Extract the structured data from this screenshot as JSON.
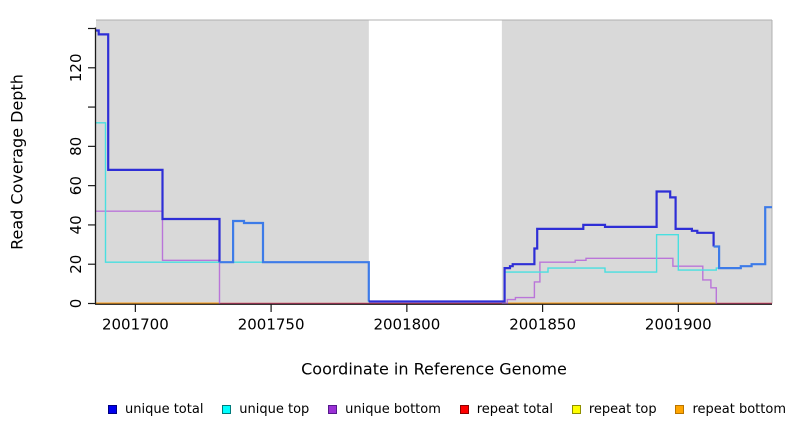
{
  "chart_data": {
    "type": "line",
    "title": "",
    "xlabel": "Coordinate in Reference Genome",
    "ylabel": "Read Coverage Depth",
    "x_range": [
      2001685.5,
      2001934.5
    ],
    "y_range": [
      0,
      144
    ],
    "grid": false,
    "legend_position": "bottom",
    "shaded_region_color": "#D9D9D9",
    "shaded_regions": [
      [
        2001685.5,
        2001786
      ],
      [
        2001835,
        2001934.5
      ]
    ],
    "x_ticks": [
      {
        "v": 2001700,
        "label": "2001700"
      },
      {
        "v": 2001750,
        "label": "2001750"
      },
      {
        "v": 2001800,
        "label": "2001800"
      },
      {
        "v": 2001850,
        "label": "2001850"
      },
      {
        "v": 2001900,
        "label": "2001900"
      }
    ],
    "y_ticks": [
      {
        "v": 0,
        "label": "0"
      },
      {
        "v": 20,
        "label": "20"
      },
      {
        "v": 40,
        "label": "40"
      },
      {
        "v": 60,
        "label": "60"
      },
      {
        "v": 80,
        "label": "80"
      },
      {
        "v": 100,
        "label": ""
      },
      {
        "v": 120,
        "label": "120"
      },
      {
        "v": 140,
        "label": ""
      }
    ],
    "legend": [
      {
        "label": "unique total",
        "fill": "#0000EE",
        "border": "#000080"
      },
      {
        "label": "unique top",
        "fill": "#00FFFF",
        "border": "#007B7B"
      },
      {
        "label": "unique bottom",
        "fill": "#9B30D6",
        "border": "#551A8B"
      },
      {
        "label": "repeat total",
        "fill": "#FF0000",
        "border": "#8B0000"
      },
      {
        "label": "repeat top",
        "fill": "#FFFF00",
        "border": "#8F8F00"
      },
      {
        "label": "repeat bottom",
        "fill": "#FFA500",
        "border": "#B87400"
      }
    ],
    "series": [
      {
        "name": "repeat top",
        "color": "#F2E53C",
        "width": 1.2,
        "pts": [
          [
            2001685.5,
            0
          ],
          [
            2001934.5,
            0
          ]
        ]
      },
      {
        "name": "repeat total",
        "color": "#D5406E",
        "width": 1.5,
        "pts": [
          [
            2001685.5,
            0
          ],
          [
            2001934.5,
            0
          ]
        ]
      },
      {
        "name": "repeat bottom",
        "color": "#FF9E1B",
        "width": 2,
        "pts": [
          [
            2001685.5,
            0
          ],
          [
            2001731,
            0,
            "none"
          ],
          [
            2001835,
            0,
            "#FF9E1B"
          ],
          [
            2001914,
            0,
            "none"
          ],
          [
            2001934.5,
            0
          ]
        ]
      },
      {
        "name": "unique bottom",
        "color": "#BA75D9",
        "width": 1.4,
        "pts": [
          [
            2001685.5,
            47
          ],
          [
            2001710,
            22
          ],
          [
            2001731,
            0,
            "none"
          ],
          [
            2001835,
            0,
            "#BA75D9"
          ],
          [
            2001837,
            2
          ],
          [
            2001840,
            3
          ],
          [
            2001847,
            11
          ],
          [
            2001849,
            21
          ],
          [
            2001862,
            22
          ],
          [
            2001866,
            23
          ],
          [
            2001898,
            19
          ],
          [
            2001909,
            12
          ],
          [
            2001912,
            8
          ],
          [
            2001914,
            0,
            "none"
          ],
          [
            2001934.5,
            0
          ]
        ]
      },
      {
        "name": "unique top",
        "color": "#48DFE0",
        "width": 1.4,
        "pts": [
          [
            2001685.5,
            92
          ],
          [
            2001689,
            21
          ],
          [
            2001786,
            1
          ],
          [
            2001836,
            16
          ],
          [
            2001852,
            18
          ],
          [
            2001873,
            16
          ],
          [
            2001892,
            35
          ],
          [
            2001900,
            17
          ],
          [
            2001914,
            18
          ],
          [
            2001923,
            19
          ],
          [
            2001927,
            20
          ],
          [
            2001932,
            49
          ],
          [
            2001934.5,
            49
          ]
        ]
      },
      {
        "name": "unique total",
        "color": "#2E2ED6",
        "width": 2.2,
        "pts": [
          [
            2001685.5,
            139
          ],
          [
            2001686.5,
            137
          ],
          [
            2001690,
            68
          ],
          [
            2001710,
            43
          ],
          [
            2001731,
            21,
            "#3D7BE8"
          ],
          [
            2001736,
            42
          ],
          [
            2001740,
            41
          ],
          [
            2001747,
            21
          ],
          [
            2001786,
            1,
            "#2E2ED6"
          ],
          [
            2001836,
            18
          ],
          [
            2001838,
            19
          ],
          [
            2001839,
            20
          ],
          [
            2001847,
            28
          ],
          [
            2001848,
            38
          ],
          [
            2001865,
            40
          ],
          [
            2001873,
            39
          ],
          [
            2001892,
            57
          ],
          [
            2001897,
            54
          ],
          [
            2001899,
            38
          ],
          [
            2001905,
            37
          ],
          [
            2001907,
            36
          ],
          [
            2001913,
            29,
            "#3D7BE8"
          ],
          [
            2001915,
            18
          ],
          [
            2001923,
            19
          ],
          [
            2001927,
            20
          ],
          [
            2001932,
            49
          ],
          [
            2001934.5,
            49
          ]
        ]
      }
    ]
  }
}
